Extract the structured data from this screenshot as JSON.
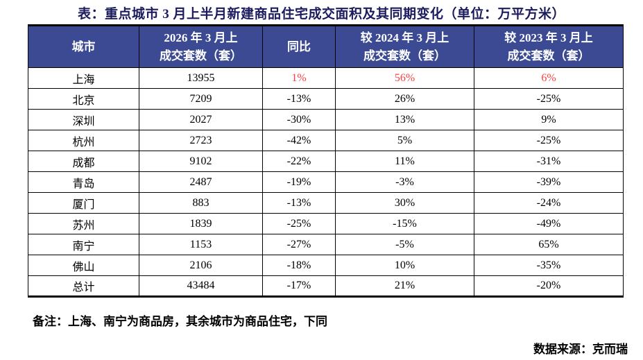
{
  "page": {
    "title": "表：重点城市 3 月上半月新建商品住宅成交面积及其同期变化（单位：万平方米）",
    "note": "备注：上海、南宁为商品房，其余城市为商品住宅，下同",
    "source": "数据来源：克而瑞"
  },
  "colors": {
    "header_bg": "#3b4a93",
    "header_text": "#ffffff",
    "highlight_red": "#f84040",
    "border": "#000000",
    "title_text": "#1b1b5e"
  },
  "table": {
    "columns": [
      {
        "line1": "城市",
        "line2": ""
      },
      {
        "line1": "2026 年 3 月上",
        "line2": "成交套数（套）"
      },
      {
        "line1": "同比",
        "line2": ""
      },
      {
        "line1": "较 2024 年 3 月上",
        "line2": "成交套数（套）"
      },
      {
        "line1": "较 2023 年 3 月上",
        "line2": "成交套数（套）"
      }
    ],
    "rows": [
      {
        "city": "上海",
        "count": "13955",
        "yoy": "1%",
        "vs2024": "56%",
        "vs2023": "6%",
        "highlight": true
      },
      {
        "city": "北京",
        "count": "7209",
        "yoy": "-13%",
        "vs2024": "26%",
        "vs2023": "-25%",
        "highlight": false
      },
      {
        "city": "深圳",
        "count": "2027",
        "yoy": "-30%",
        "vs2024": "13%",
        "vs2023": "9%",
        "highlight": false
      },
      {
        "city": "杭州",
        "count": "2723",
        "yoy": "-42%",
        "vs2024": "5%",
        "vs2023": "-25%",
        "highlight": false
      },
      {
        "city": "成都",
        "count": "9102",
        "yoy": "-22%",
        "vs2024": "11%",
        "vs2023": "-31%",
        "highlight": false
      },
      {
        "city": "青岛",
        "count": "2487",
        "yoy": "-19%",
        "vs2024": "-3%",
        "vs2023": "-39%",
        "highlight": false
      },
      {
        "city": "厦门",
        "count": "883",
        "yoy": "-13%",
        "vs2024": "30%",
        "vs2023": "-24%",
        "highlight": false
      },
      {
        "city": "苏州",
        "count": "1839",
        "yoy": "-25%",
        "vs2024": "-15%",
        "vs2023": "-49%",
        "highlight": false
      },
      {
        "city": "南宁",
        "count": "1153",
        "yoy": "-27%",
        "vs2024": "-5%",
        "vs2023": "65%",
        "highlight": false
      },
      {
        "city": "佛山",
        "count": "2106",
        "yoy": "-18%",
        "vs2024": "10%",
        "vs2023": "-35%",
        "highlight": false
      },
      {
        "city": "总计",
        "count": "43484",
        "yoy": "-17%",
        "vs2024": "21%",
        "vs2023": "-20%",
        "highlight": false
      }
    ]
  }
}
